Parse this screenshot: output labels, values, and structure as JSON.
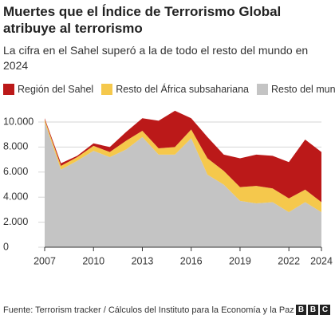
{
  "chart_data": {
    "type": "stacked-area",
    "title": "Muertes que el Índice de Terrorismo Global atribuye al terrorismo",
    "subtitle": "La cifra en el Sahel superó a la de todo el resto del mundo en 2024",
    "x": [
      2007,
      2008,
      2009,
      2010,
      2011,
      2012,
      2013,
      2014,
      2015,
      2016,
      2017,
      2018,
      2019,
      2020,
      2021,
      2022,
      2023,
      2024
    ],
    "legend_order": [
      2,
      1,
      0
    ],
    "series": [
      {
        "name": "Resto del mundo",
        "color": "#c4c4c4",
        "values": [
          10000,
          6200,
          6900,
          7700,
          7200,
          7800,
          8800,
          7400,
          7400,
          8700,
          5800,
          5000,
          3700,
          3500,
          3600,
          2800,
          3600,
          2800
        ]
      },
      {
        "name": "Resto del África subsahariana",
        "color": "#f5c84c",
        "values": [
          200,
          300,
          300,
          400,
          400,
          700,
          500,
          500,
          600,
          700,
          1300,
          1100,
          1100,
          1400,
          1100,
          1100,
          1000,
          800
        ]
      },
      {
        "name": "Región del Sahel",
        "color": "#bb1919",
        "values": [
          100,
          200,
          100,
          200,
          400,
          700,
          1000,
          2200,
          2900,
          900,
          1700,
          1300,
          2300,
          2500,
          2600,
          2900,
          4000,
          4000
        ]
      }
    ],
    "xlim": [
      2007,
      2024
    ],
    "xticks": [
      2007,
      2010,
      2013,
      2016,
      2019,
      2022,
      2024
    ],
    "ylim": [
      0,
      11000
    ],
    "yticks": [
      0,
      {
        "value": 2000,
        "label": "2.000"
      },
      {
        "value": 4000,
        "label": "4.000"
      },
      {
        "value": 6000,
        "label": "6.000"
      },
      {
        "value": 8000,
        "label": "8.000"
      },
      {
        "value": 10000,
        "label": "10.000"
      }
    ],
    "grid": true,
    "source": "Fuente: Terrorism tracker / Cálculos del Instituto para la Economía y la Paz",
    "logo": [
      "B",
      "B",
      "C"
    ]
  }
}
